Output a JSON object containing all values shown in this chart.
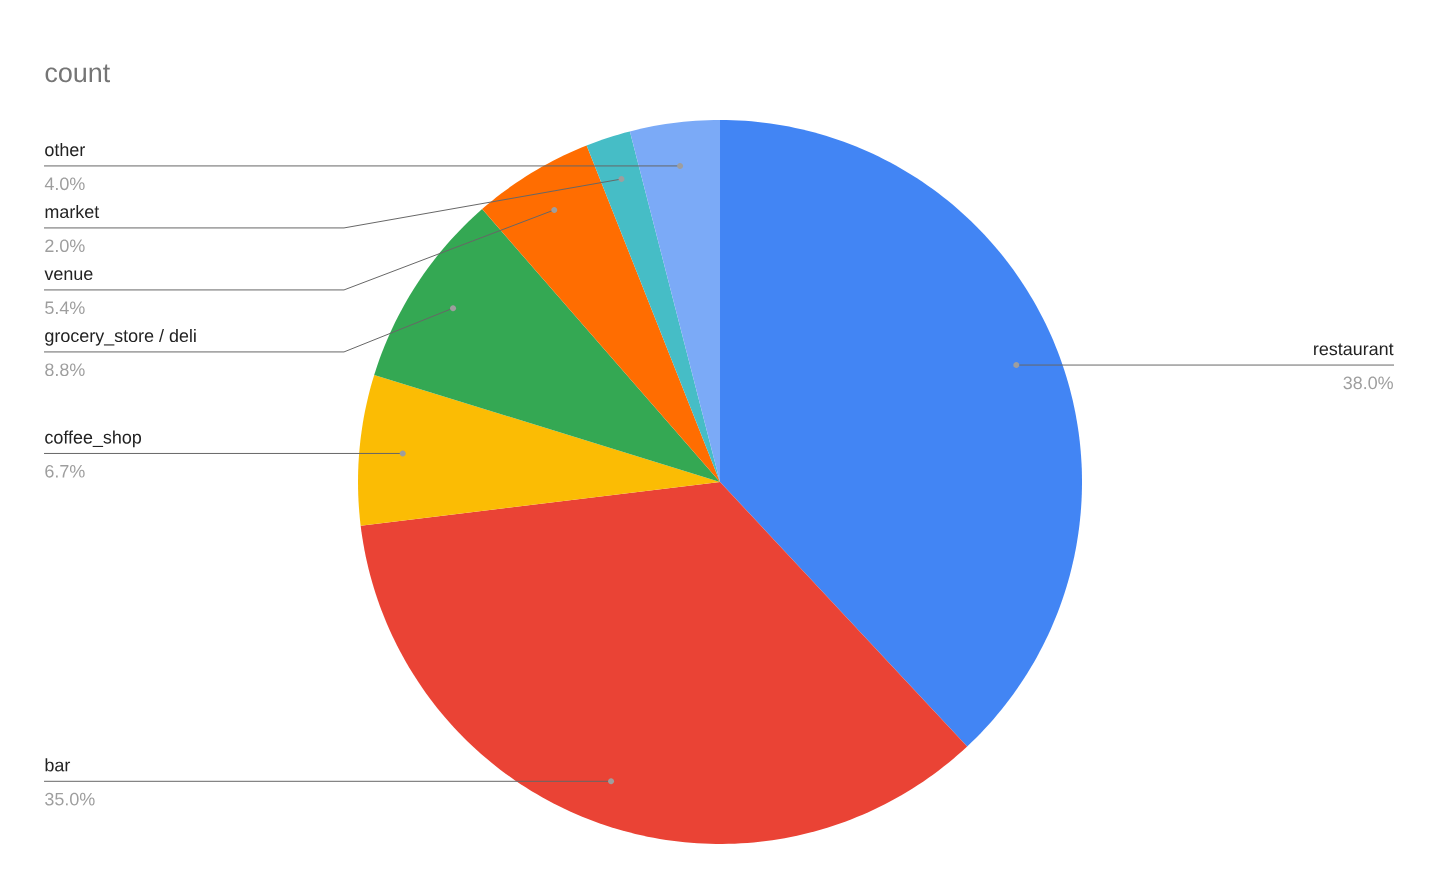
{
  "chart_data": {
    "type": "pie",
    "title": "count",
    "categories": [
      "restaurant",
      "bar",
      "coffee_shop",
      "grocery_store / deli",
      "venue",
      "market",
      "other"
    ],
    "values": [
      38.0,
      35.0,
      6.7,
      8.8,
      5.4,
      2.0,
      4.0
    ],
    "value_labels": [
      "38.0%",
      "35.0%",
      "6.7%",
      "8.8%",
      "5.4%",
      "2.0%",
      "4.0%"
    ],
    "colors": [
      "#4285f4",
      "#ea4335",
      "#fbbc04",
      "#34a853",
      "#ff6d01",
      "#46bdc6",
      "#7baaf7"
    ]
  }
}
